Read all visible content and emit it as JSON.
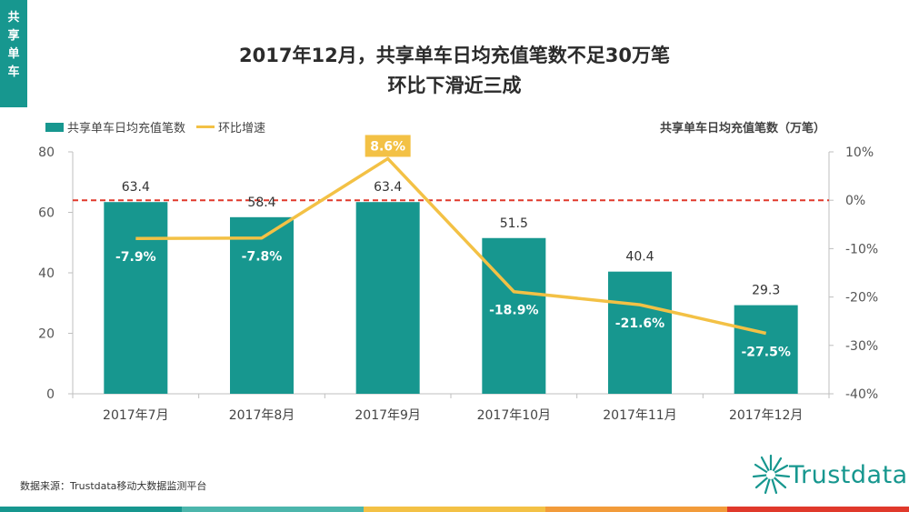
{
  "side_tab": [
    "共",
    "享",
    "单",
    "车"
  ],
  "title_line1": "2017年12月，共享单车日均充值笔数不足30万笔",
  "title_line2": "环比下滑近三成",
  "legend": {
    "bar": "共享单车日均充值笔数",
    "line": "环比增速"
  },
  "unit_label": "共享单车日均充值笔数（万笔）",
  "source": "数据来源：Trustdata移动大数据监测平台",
  "logo_text": "Trustdata",
  "colors": {
    "bar": "#17978f",
    "line": "#f3c145",
    "reference": "#e0392b",
    "highlight": "#f3c145"
  },
  "chart_data": {
    "type": "bar",
    "categories": [
      "2017年7月",
      "2017年8月",
      "2017年9月",
      "2017年10月",
      "2017年11月",
      "2017年12月"
    ],
    "series": [
      {
        "name": "共享单车日均充值笔数",
        "type": "bar",
        "axis": "left",
        "values": [
          63.4,
          58.4,
          63.4,
          51.5,
          40.4,
          29.3
        ],
        "labels": [
          "63.4",
          "58.4",
          "63.4",
          "51.5",
          "40.4",
          "29.3"
        ]
      },
      {
        "name": "环比增速",
        "type": "line",
        "axis": "right",
        "values": [
          -7.9,
          -7.8,
          8.6,
          -18.9,
          -21.6,
          -27.5
        ],
        "labels": [
          "-7.9%",
          "-7.8%",
          "8.6%",
          "-18.9%",
          "-21.6%",
          "-27.5%"
        ]
      }
    ],
    "y_left": {
      "min": 0,
      "max": 80,
      "ticks": [
        0,
        20,
        40,
        60,
        80
      ],
      "tick_labels": [
        "0",
        "20",
        "40",
        "60",
        "80"
      ]
    },
    "y_right": {
      "min": -40,
      "max": 10,
      "ticks": [
        10,
        0,
        -10,
        -20,
        -30,
        -40
      ],
      "tick_labels": [
        "10%",
        "0%",
        "-10%",
        "-20%",
        "-30%",
        "-40%"
      ]
    },
    "reference_line": {
      "axis": "right",
      "value": 0,
      "style": "dashed"
    },
    "highlight_index": 2
  }
}
